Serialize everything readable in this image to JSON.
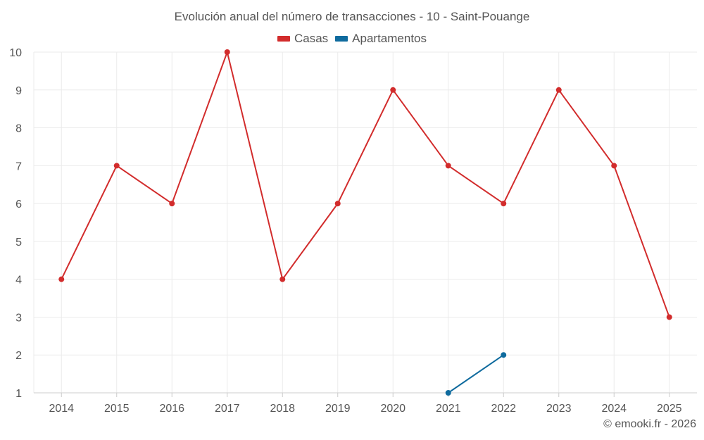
{
  "chart_data": {
    "type": "line",
    "title": "Evolución anual del número de transacciones - 10 - Saint-Pouange",
    "x": [
      "2014",
      "2015",
      "2016",
      "2017",
      "2018",
      "2019",
      "2020",
      "2021",
      "2022",
      "2023",
      "2024",
      "2025"
    ],
    "series": [
      {
        "name": "Casas",
        "color": "#d22c2c",
        "values": [
          4,
          7,
          6,
          10,
          4,
          6,
          9,
          7,
          6,
          9,
          7,
          3
        ]
      },
      {
        "name": "Apartamentos",
        "color": "#0f6b9e",
        "values": [
          null,
          null,
          null,
          null,
          null,
          null,
          null,
          1,
          2,
          null,
          null,
          null
        ]
      }
    ],
    "ylim": [
      1,
      10
    ],
    "yticks": [
      "1",
      "2",
      "3",
      "4",
      "5",
      "6",
      "7",
      "8",
      "9",
      "10"
    ],
    "grid": true,
    "legend_position": "top-center"
  },
  "footer": {
    "credit": "© emooki.fr - 2026"
  }
}
